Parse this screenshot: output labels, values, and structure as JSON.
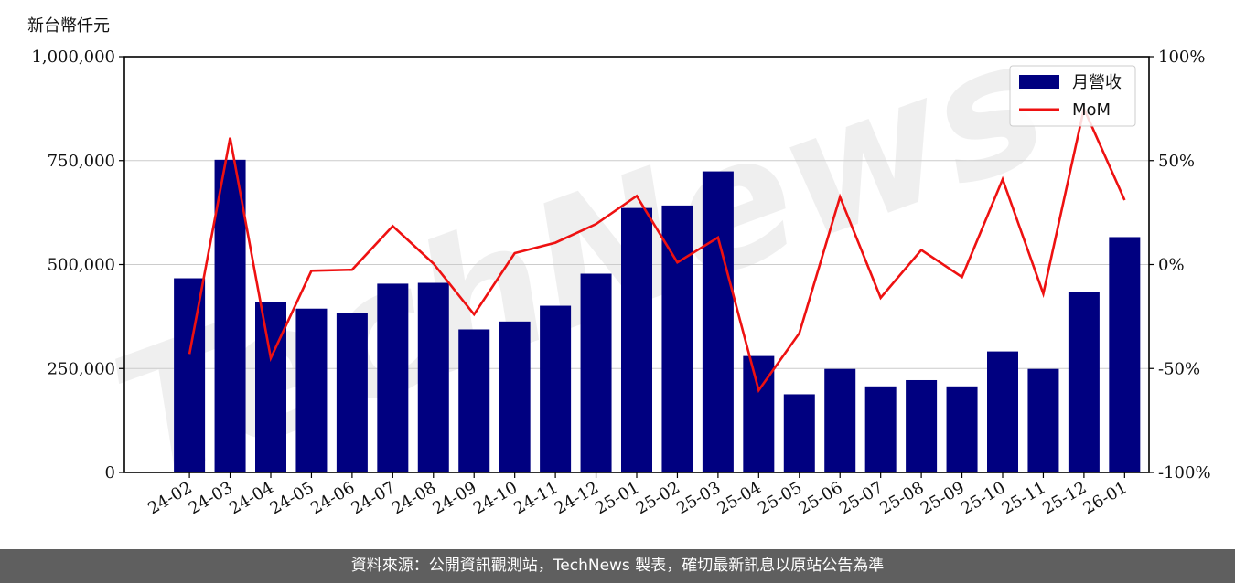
{
  "unit_label": "新台幣仟元",
  "footer_text": "資料來源：公開資訊觀測站，TechNews 製表，確切最新訊息以原站公告為準",
  "watermark": "TechNews",
  "colors": {
    "bar": "#000080",
    "line": "#ee1111",
    "grid": "#cccccc",
    "footer_bg": "#5f5f5f"
  },
  "chart_data": {
    "type": "bar",
    "categories": [
      "24-02",
      "24-03",
      "24-04",
      "24-05",
      "24-06",
      "24-07",
      "24-08",
      "24-09",
      "24-10",
      "24-11",
      "24-12",
      "25-01",
      "25-02",
      "25-03",
      "25-04",
      "25-05",
      "25-06",
      "25-07",
      "25-08",
      "25-09",
      "25-10",
      "25-11",
      "25-12",
      "26-01"
    ],
    "series": [
      {
        "name": "月營收",
        "kind": "bar",
        "axis": "left",
        "values": [
          467000,
          752000,
          410000,
          394000,
          383000,
          454000,
          456000,
          344000,
          363000,
          401000,
          478000,
          636000,
          642000,
          724000,
          280000,
          188000,
          249000,
          207000,
          222000,
          207000,
          291000,
          249000,
          435000,
          566000
        ]
      },
      {
        "name": "MoM",
        "kind": "line",
        "axis": "right",
        "values": [
          -43,
          61,
          -45,
          -3,
          -2.5,
          18.5,
          0.5,
          -24,
          5.5,
          10.5,
          19.5,
          33,
          1,
          13,
          -60.5,
          -33,
          32.5,
          -16,
          7,
          -6,
          41,
          -14,
          75,
          31
        ]
      }
    ],
    "y_left": {
      "lim": [
        0,
        1000000
      ],
      "ticks": [
        0,
        250000,
        500000,
        750000,
        1000000
      ],
      "tick_labels": [
        "0",
        "250,000",
        "500,000",
        "750,000",
        "1,000,000"
      ]
    },
    "y_right": {
      "lim": [
        -100,
        100
      ],
      "ticks": [
        -100,
        -50,
        0,
        50,
        100
      ],
      "tick_labels": [
        "-100%",
        "-50%",
        "0%",
        "50%",
        "100%"
      ]
    },
    "grid": "horizontal",
    "legend": "top-right"
  }
}
